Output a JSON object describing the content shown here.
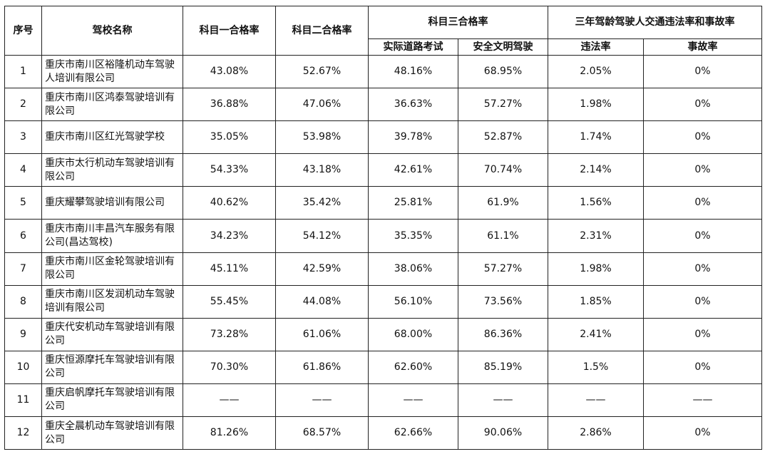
{
  "header": {
    "seq": "序号",
    "name": "驾校名称",
    "subject1": "科目一合格率",
    "subject2": "科目二合格率",
    "subject3": "科目三合格率",
    "subject3_road": "实际道路考试",
    "subject3_safe": "安全文明驾驶",
    "three_year": "三年驾龄驾驶人交通违法率和事故率",
    "violation": "违法率",
    "accident": "事故率"
  },
  "rows": [
    {
      "seq": "1",
      "name": "重庆市南川区裕隆机动车驾驶人培训有限公司",
      "s1": "43.08%",
      "s2": "52.67%",
      "road": "48.16%",
      "safe": "68.95%",
      "violation": "2.05%",
      "accident": "0%"
    },
    {
      "seq": "2",
      "name": "重庆市南川区鸿泰驾驶培训有限公司",
      "s1": "36.88%",
      "s2": "47.06%",
      "road": "36.63%",
      "safe": "57.27%",
      "violation": "1.98%",
      "accident": "0%"
    },
    {
      "seq": "3",
      "name": "重庆市南川区红光驾驶学校",
      "s1": "35.05%",
      "s2": "53.98%",
      "road": "39.78%",
      "safe": "52.87%",
      "violation": "1.74%",
      "accident": "0%"
    },
    {
      "seq": "4",
      "name": "重庆市太行机动车驾驶培训有限公司",
      "s1": "54.33%",
      "s2": "43.18%",
      "road": "42.61%",
      "safe": "70.74%",
      "violation": "2.14%",
      "accident": "0%"
    },
    {
      "seq": "5",
      "name": "重庆耀攀驾驶培训有限公司",
      "s1": "40.62%",
      "s2": "35.42%",
      "road": "25.81%",
      "safe": "61.9%",
      "violation": "1.56%",
      "accident": "0%"
    },
    {
      "seq": "6",
      "name": "重庆市南川丰昌汽车服务有限公司(昌达驾校)",
      "s1": "34.23%",
      "s2": "54.12%",
      "road": "35.35%",
      "safe": "61.1%",
      "violation": "2.31%",
      "accident": "0%"
    },
    {
      "seq": "7",
      "name": "重庆市南川区金轮驾驶培训有限公司",
      "s1": "45.11%",
      "s2": "42.59%",
      "road": "38.06%",
      "safe": "57.27%",
      "violation": "1.98%",
      "accident": "0%"
    },
    {
      "seq": "8",
      "name": "重庆市南川区发润机动车驾驶培训有限公司",
      "s1": "55.45%",
      "s2": "44.08%",
      "road": "56.10%",
      "safe": "73.56%",
      "violation": "1.85%",
      "accident": "0%"
    },
    {
      "seq": "9",
      "name": "重庆代安机动车驾驶培训有限公司",
      "s1": "73.28%",
      "s2": "61.06%",
      "road": "68.00%",
      "safe": "86.36%",
      "violation": "2.41%",
      "accident": "0%"
    },
    {
      "seq": "10",
      "name": "重庆恒源摩托车驾驶培训有限公司",
      "s1": "70.30%",
      "s2": "61.86%",
      "road": "62.60%",
      "safe": "85.19%",
      "violation": "1.5%",
      "accident": "0%"
    },
    {
      "seq": "11",
      "name": "重庆启帆摩托车驾驶培训有限公司",
      "s1": "——",
      "s2": "——",
      "road": "——",
      "safe": "——",
      "violation": "——",
      "accident": "——"
    },
    {
      "seq": "12",
      "name": "重庆全晨机动车驾驶培训有限公司",
      "s1": "81.26%",
      "s2": "68.57%",
      "road": "62.66%",
      "safe": "90.06%",
      "violation": "2.86%",
      "accident": "0%"
    }
  ]
}
